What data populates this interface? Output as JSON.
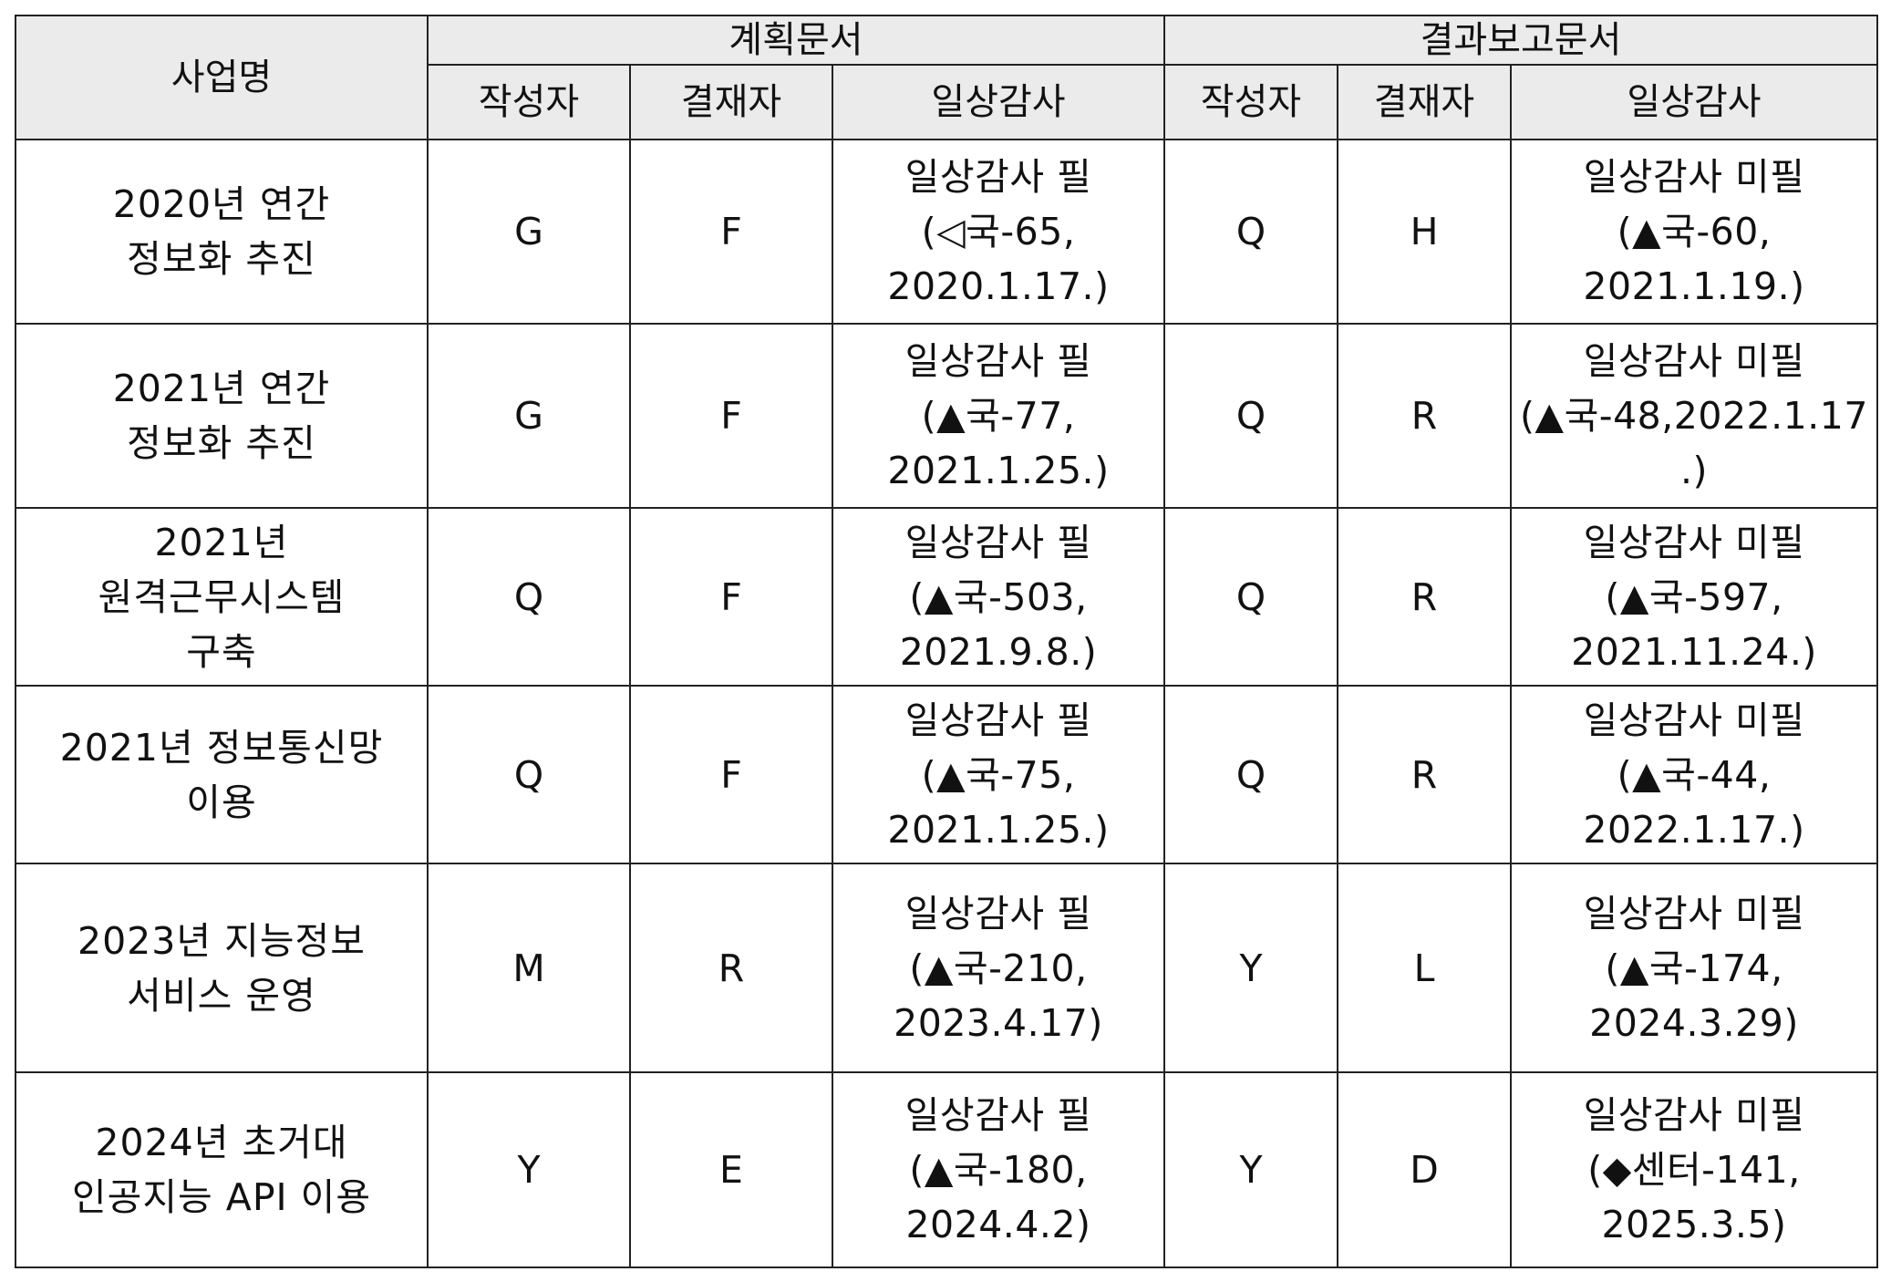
{
  "header": {
    "project": "사업명",
    "plan_group": "계획문서",
    "result_group": "결과보고문서",
    "plan_author": "작성자",
    "plan_approver": "결재자",
    "plan_audit": "일상감사",
    "result_author": "작성자",
    "result_approver": "결재자",
    "result_audit": "일상감사"
  },
  "rows": [
    {
      "project": "2020년 연간\n정보화 추진",
      "plan_author": "G",
      "plan_approver": "F",
      "plan_audit": "일상감사 필\n(◁국-65,\n2020.1.17.)",
      "result_author": "Q",
      "result_approver": "H",
      "result_audit": "일상감사 미필\n(▲국-60,\n2021.1.19.)"
    },
    {
      "project": "2021년 연간\n정보화 추진",
      "plan_author": "G",
      "plan_approver": "F",
      "plan_audit": "일상감사 필\n(▲국-77,\n2021.1.25.)",
      "result_author": "Q",
      "result_approver": "R",
      "result_audit": "일상감사 미필\n(▲국-48,2022.1.17\n.)"
    },
    {
      "project": "2021년\n원격근무시스템\n구축",
      "plan_author": "Q",
      "plan_approver": "F",
      "plan_audit": "일상감사 필\n(▲국-503,\n2021.9.8.)",
      "result_author": "Q",
      "result_approver": "R",
      "result_audit": "일상감사 미필\n(▲국-597,\n2021.11.24.)"
    },
    {
      "project": "2021년 정보통신망\n이용",
      "plan_author": "Q",
      "plan_approver": "F",
      "plan_audit": "일상감사 필\n(▲국-75,\n2021.1.25.)",
      "result_author": "Q",
      "result_approver": "R",
      "result_audit": "일상감사 미필\n(▲국-44,\n2022.1.17.)"
    },
    {
      "project": "2023년 지능정보\n서비스 운영",
      "plan_author": "M",
      "plan_approver": "R",
      "plan_audit": "일상감사 필\n(▲국-210,\n2023.4.17)",
      "result_author": "Y",
      "result_approver": "L",
      "result_audit": "일상감사 미필\n(▲국-174,\n2024.3.29)"
    },
    {
      "project": "2024년 초거대\n인공지능 API 이용",
      "plan_author": "Y",
      "plan_approver": "E",
      "plan_audit": "일상감사 필\n(▲국-180,\n2024.4.2)",
      "result_author": "Y",
      "result_approver": "D",
      "result_audit": "일상감사 미필\n(◆센터-141,\n2025.3.5)"
    }
  ]
}
